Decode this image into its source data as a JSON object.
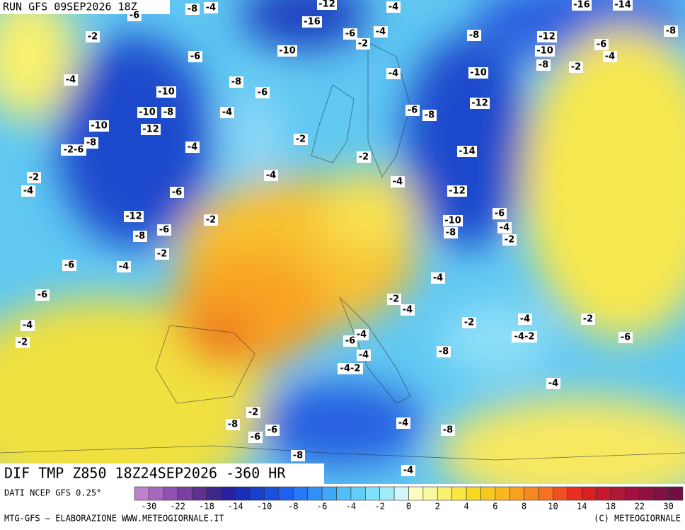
{
  "header": {
    "run": "RUN GFS 09SEP2026 18Z"
  },
  "map": {
    "title": "DIF TMP Z850 18Z24SEP2026 -360 HR",
    "contour_labels": [
      "-4",
      "-8",
      "-12",
      "-4",
      "-16",
      "-14",
      "-6",
      "-2",
      "-6",
      "-10",
      "-6",
      "-4",
      "-2",
      "-16",
      "-8",
      "-12",
      "-6",
      "-10",
      "-4",
      "-8",
      "-2",
      "-8",
      "-4",
      "-8",
      "-6",
      "-10",
      "-4",
      "-10",
      "-4",
      "-10",
      "-8",
      "-10",
      "-12",
      "-12",
      "-6",
      "-8",
      "-2",
      "-8",
      "-2-6",
      "-4",
      "-14",
      "-2",
      "-2",
      "-4",
      "-4",
      "-6",
      "-4",
      "-12",
      "-12",
      "-2",
      "-6",
      "-10",
      "-6",
      "-8",
      "-8",
      "-4",
      "-2",
      "-2",
      "-6",
      "-4",
      "-4",
      "-6",
      "-2",
      "-4",
      "-4",
      "-2",
      "-2",
      "-4",
      "-2",
      "-4",
      "-6",
      "-4-2",
      "-6",
      "-4",
      "-8",
      "-4-2",
      "-4",
      "-2",
      "-8",
      "-6",
      "-6",
      "-4",
      "-8",
      "-8",
      "-4"
    ]
  },
  "legend": {
    "source": "DATI NCEP GFS 0.25°",
    "labels": [
      "-30",
      "-22",
      "-18",
      "-14",
      "-10",
      "-8",
      "-6",
      "-4",
      "-2",
      "0",
      "2",
      "4",
      "6",
      "8",
      "10",
      "14",
      "18",
      "22",
      "30"
    ],
    "colors": [
      "#c080d0",
      "#a868c0",
      "#9050b0",
      "#7840a0",
      "#603090",
      "#402888",
      "#2820a0",
      "#1830b8",
      "#1840d0",
      "#1850e0",
      "#2060f0",
      "#2878f8",
      "#3090f8",
      "#40a8f8",
      "#50c0f8",
      "#60d0f8",
      "#80e0f8",
      "#a0ecf8",
      "#d0f8fc",
      "#ffffc0",
      "#f8f8a0",
      "#f8f070",
      "#f8e840",
      "#f8d820",
      "#f8c820",
      "#f8b820",
      "#f8a020",
      "#f88820",
      "#f87020",
      "#f05020",
      "#e83020",
      "#d82020",
      "#c81830",
      "#b01838",
      "#a01040",
      "#901040",
      "#801040",
      "#701040"
    ]
  },
  "footer": {
    "left": "MTG-GFS — ELABORAZIONE WWW.METEOGIORNALE.IT",
    "right": "(C) METEOGIORNALE"
  }
}
